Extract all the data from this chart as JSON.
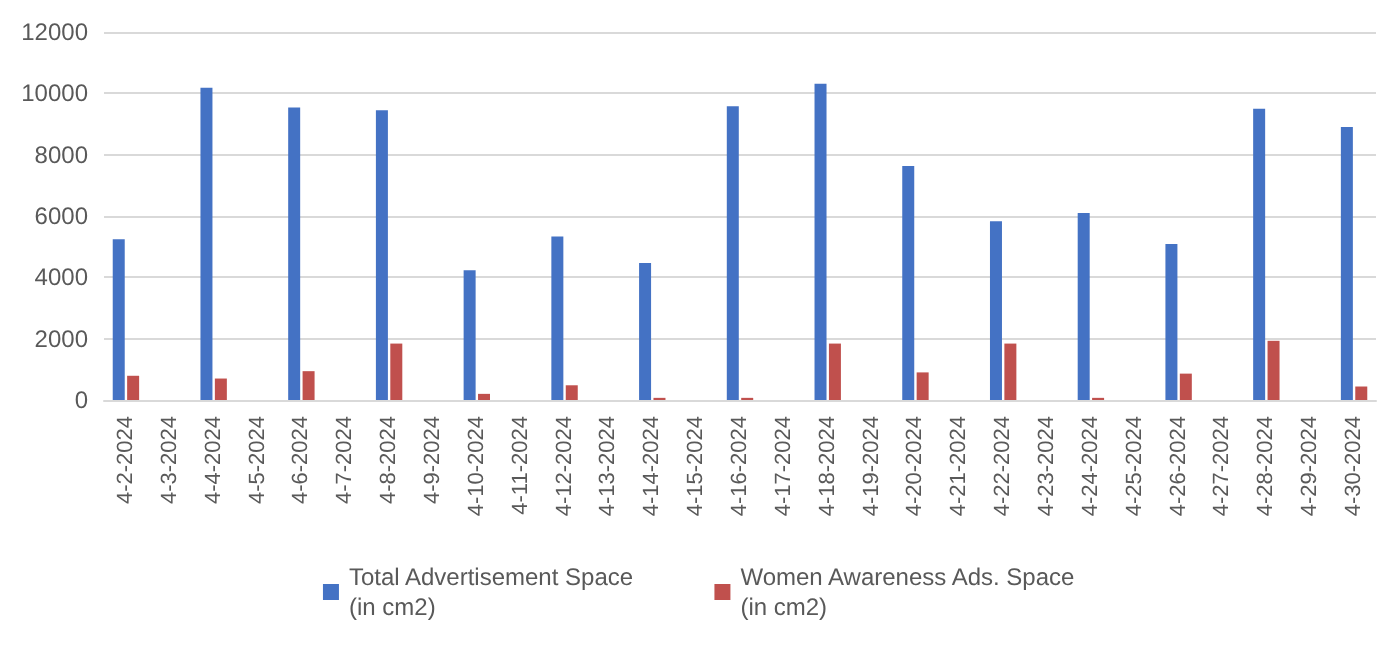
{
  "chart_data": {
    "type": "bar",
    "categories": [
      "4-2-2024",
      "4-3-2024",
      "4-4-2024",
      "4-5-2024",
      "4-6-2024",
      "4-7-2024",
      "4-8-2024",
      "4-9-2024",
      "4-10-2024",
      "4-11-2024",
      "4-12-2024",
      "4-13-2024",
      "4-14-2024",
      "4-15-2024",
      "4-16-2024",
      "4-17-2024",
      "4-18-2024",
      "4-19-2024",
      "4-20-2024",
      "4-21-2024",
      "4-22-2024",
      "4-23-2024",
      "4-24-2024",
      "4-25-2024",
      "4-26-2024",
      "4-27-2024",
      "4-28-2024",
      "4-29-2024",
      "4-30-2024"
    ],
    "series": [
      {
        "name": "Total Advertisement Space\n(in cm2)",
        "color": "#4472c4",
        "values": [
          5240,
          null,
          10180,
          null,
          9540,
          null,
          9450,
          null,
          4230,
          null,
          5330,
          null,
          4470,
          null,
          9580,
          null,
          10310,
          null,
          7630,
          null,
          5830,
          null,
          6100,
          null,
          5090,
          null,
          9500,
          null,
          8900
        ]
      },
      {
        "name": "Women Awareness Ads. Space\n(in cm2)",
        "color": "#c0504d",
        "values": [
          790,
          null,
          700,
          null,
          940,
          null,
          1840,
          null,
          200,
          null,
          480,
          null,
          70,
          null,
          70,
          null,
          1840,
          null,
          900,
          null,
          1840,
          null,
          70,
          null,
          860,
          null,
          1930,
          null,
          440
        ]
      }
    ],
    "ylim": [
      0,
      12000
    ],
    "yticks": [
      0,
      2000,
      4000,
      6000,
      8000,
      10000,
      12000
    ],
    "grid": "y",
    "legend": "bottom"
  }
}
